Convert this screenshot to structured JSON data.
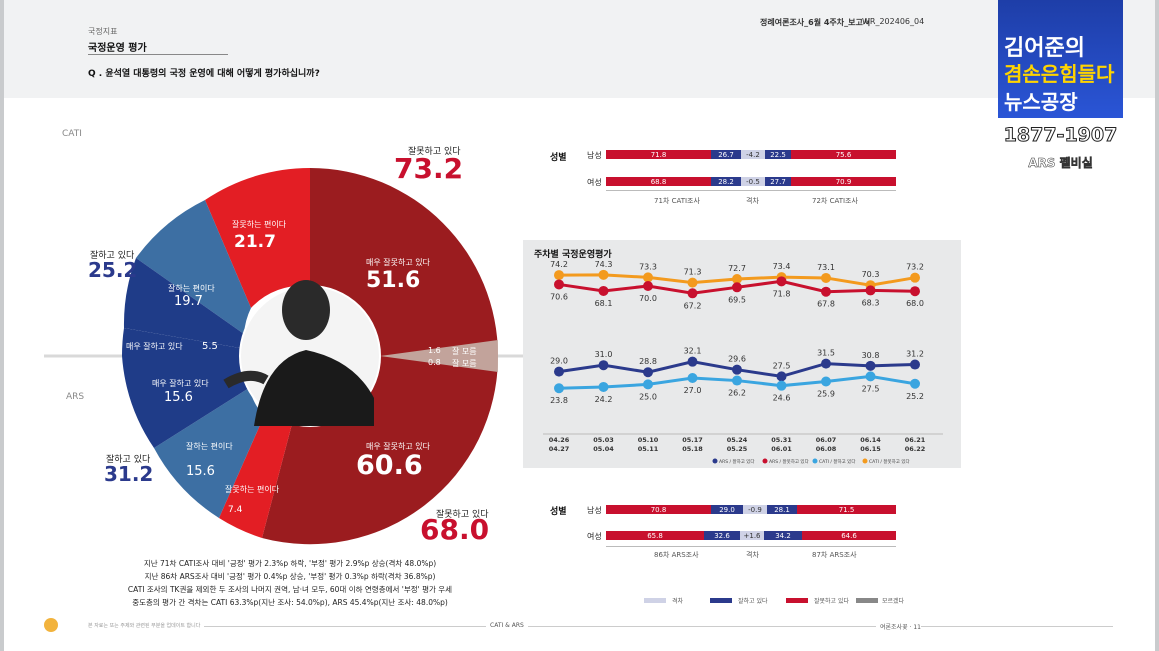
{
  "header": {
    "section": "국정지표",
    "title": "국정운영 평가",
    "question": "Q . 윤석열 대통령의 국정 운영에 대해 어떻게 평가하십니까?",
    "report_name": "정례여론조사_6월 4주차_보고서",
    "report_code": "WR_202406_04"
  },
  "logo": {
    "line1": "김어준의",
    "line2": "겸손은힘들다",
    "line3": "뉴스공장",
    "numbers": "1877-1907",
    "sub": "ARS 펠비실"
  },
  "donut": {
    "cati_label": "CATI",
    "ars_label": "ARS",
    "cati": {
      "positive_label": "잘하고 있다",
      "positive": "25.2",
      "good_label": "잘하는 편이다",
      "good": "19.7",
      "very_good_label": "매우 잘하고 있다",
      "very_good": "5.5",
      "bad_label": "잘못하는 편이다",
      "bad": "21.7",
      "very_bad_label": "매우 잘못하고 있다",
      "very_bad": "51.6",
      "negative_label": "잘못하고 있다",
      "negative": "73.2",
      "dk_label": "잘 모름",
      "dk": "1.6"
    },
    "ars": {
      "positive_label": "잘하고 있다",
      "positive": "31.2",
      "good_label": "잘하는 편이다",
      "good": "15.6",
      "very_good_label": "매우 잘하고 있다",
      "very_good": "15.6",
      "bad_label": "잘못하는 편이다",
      "bad": "7.4",
      "very_bad_label": "매우 잘못하고 있다",
      "very_bad": "60.6",
      "negative_label": "잘못하고 있다",
      "negative": "68.0",
      "dk_label": "잘 모름",
      "dk": "0.8"
    }
  },
  "gender_cati": {
    "title": "성별",
    "rows": [
      {
        "label": "남성",
        "prev_neg": "71.8",
        "prev_pos": "26.7",
        "diff": "-4.2",
        "cur_pos": "22.5",
        "cur_neg": "75.6"
      },
      {
        "label": "여성",
        "prev_neg": "68.8",
        "prev_pos": "28.2",
        "diff": "-0.5",
        "cur_pos": "27.7",
        "cur_neg": "70.9"
      }
    ],
    "left_caption": "71차 CATI조사",
    "mid_caption": "격차",
    "right_caption": "72차 CATI조사"
  },
  "gender_ars": {
    "title": "성별",
    "rows": [
      {
        "label": "남성",
        "prev_neg": "70.8",
        "prev_pos": "29.0",
        "diff": "-0.9",
        "cur_pos": "28.1",
        "cur_neg": "71.5"
      },
      {
        "label": "여성",
        "prev_neg": "65.8",
        "prev_pos": "32.6",
        "diff": "+1.6",
        "cur_pos": "34.2",
        "cur_neg": "64.6"
      }
    ],
    "left_caption": "86차 ARS조사",
    "mid_caption": "격차",
    "right_caption": "87차 ARS조사"
  },
  "chart_data": {
    "type": "line",
    "title": "주차별 국정운영평가",
    "x": [
      "04.26 04.27",
      "05.03 05.04",
      "05.10 05.11",
      "05.17 05.18",
      "05.24 05.25",
      "05.31 06.01",
      "06.07 06.08",
      "06.14 06.15",
      "06.21 06.22"
    ],
    "series": [
      {
        "name": "CATI / 잘못하고 있다",
        "color": "#f39a1e",
        "values": [
          74.2,
          74.3,
          73.3,
          71.3,
          72.7,
          73.4,
          73.1,
          70.3,
          73.2
        ]
      },
      {
        "name": "ARS / 잘못하고 있다",
        "color": "#c8102e",
        "values": [
          70.6,
          68.1,
          70.0,
          67.2,
          69.5,
          71.8,
          67.8,
          68.3,
          68.0
        ]
      },
      {
        "name": "ARS / 잘하고 있다",
        "color": "#2b3a8c",
        "values": [
          29.0,
          31.0,
          28.8,
          32.1,
          29.6,
          27.5,
          31.5,
          30.8,
          31.2
        ]
      },
      {
        "name": "CATI / 잘하고 있다",
        "color": "#3aa5e0",
        "values": [
          23.8,
          24.2,
          25.0,
          27.0,
          26.2,
          24.6,
          25.9,
          27.5,
          25.2
        ]
      }
    ],
    "legend": [
      "ARS / 잘하고 있다",
      "ARS / 잘못하고 있다",
      "CATI / 잘하고 있다",
      "CATI / 잘못하고 있다"
    ],
    "legend_position": "bottom"
  },
  "bottom_legend": [
    "격차",
    "잘하고 있다",
    "잘못하고 있다",
    "모르겠다"
  ],
  "notes": [
    "지난 71차 CATI조사 대비 '긍정' 평가 2.3%p 하락, '부정' 평가 2.9%p 상승(격차 48.0%p)",
    "지난 86차 ARS조사 대비 '긍정' 평가 0.4%p 상승, '부정' 평가 0.3%p 하락(격차 36.8%p)",
    "CATI 조사의 TK권을 제외한 두 조사의 나머지 권역, 남·녀 모두, 60대 이하 연령층에서 '부정' 평가 우세",
    "중도층의 평가 간 격차는 CATI 63.3%p(지난 조사: 54.0%p), ARS 45.4%p(지난 조사: 48.0%p)"
  ],
  "footer": {
    "left": "본 자료는 또는 주제와 관련된 부분을 업데이트 합니다",
    "center": "CATI & ARS",
    "right": "여론조사꽃 · 11"
  }
}
